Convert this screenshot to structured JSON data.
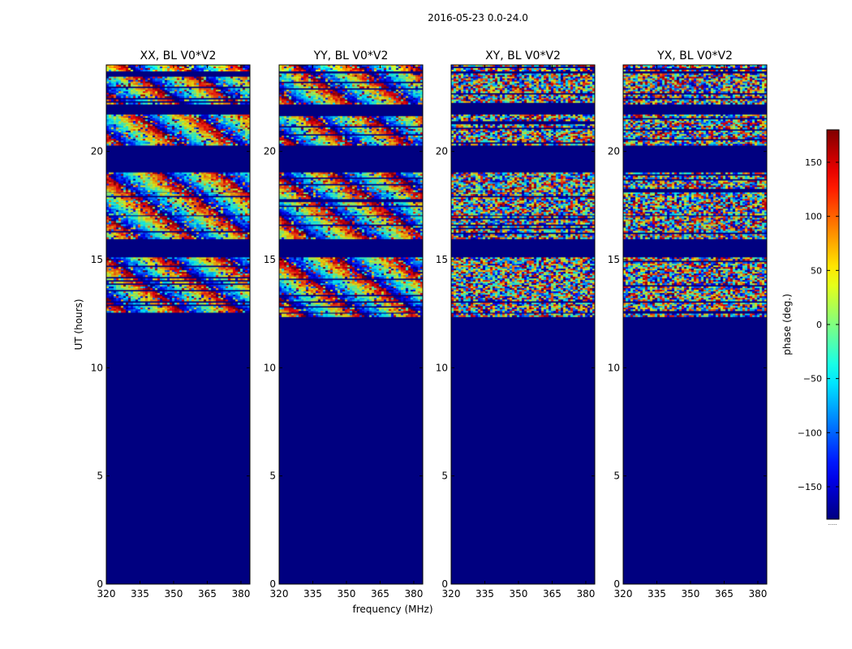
{
  "figure": {
    "suptitle": "2016-05-23 0.0-24.0"
  },
  "chart_data": {
    "type": "heatmap",
    "title": "2016-05-23 0.0-24.0",
    "xlabel": "frequency (MHz)",
    "ylabel": "UT (hours)",
    "xlim": [
      320,
      384
    ],
    "ylim": [
      0,
      24
    ],
    "x_ticks": [
      "320",
      "335",
      "350",
      "365",
      "380"
    ],
    "x_tick_values": [
      320,
      335,
      350,
      365,
      380
    ],
    "y_ticks": [
      "0",
      "5",
      "10",
      "15",
      "20"
    ],
    "y_tick_values": [
      0,
      5,
      10,
      15,
      20
    ],
    "panels": [
      {
        "title": "XX, BL V0*V2",
        "fringes": true
      },
      {
        "title": "YY, BL V0*V2",
        "fringes": true
      },
      {
        "title": "XY, BL V0*V2",
        "fringes": false
      },
      {
        "title": "YX, BL V0*V2",
        "fringes": false
      }
    ],
    "data_bands_hours": [
      [
        12.4,
        12.5
      ],
      [
        12.6,
        13.0
      ],
      [
        13.1,
        15.1
      ],
      [
        16.0,
        17.0
      ],
      [
        17.1,
        18.1
      ],
      [
        18.2,
        19.1
      ],
      [
        20.3,
        21.7
      ],
      [
        22.2,
        23.6
      ],
      [
        23.7,
        24.0
      ]
    ],
    "masked_value": -180,
    "colorbar": {
      "label": "phase (deg.)",
      "range": [
        -180,
        180
      ],
      "ticks": [
        "150",
        "100",
        "50",
        "0",
        "−50",
        "−100",
        "−150"
      ],
      "tick_values": [
        150,
        100,
        50,
        0,
        -50,
        -100,
        -150
      ],
      "extend_label": "......",
      "colormap": "jet"
    }
  }
}
